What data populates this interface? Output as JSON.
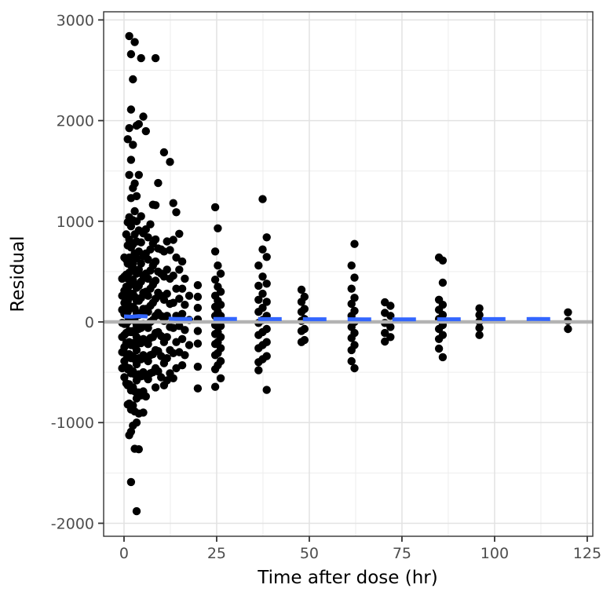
{
  "figure": {
    "background": "#FFFFFF",
    "panel_background": "#FFFFFF"
  },
  "chart_data": {
    "type": "scatter",
    "title": "",
    "xlabel": "Time after dose (hr)",
    "ylabel": "Residual",
    "xlim": [
      -5.5,
      126.5
    ],
    "ylim": [
      -2129,
      3081
    ],
    "x_major_ticks": [
      0,
      25,
      50,
      75,
      100,
      125
    ],
    "x_minor_ticks": [
      12.5,
      37.5,
      62.5,
      87.5,
      112.5
    ],
    "y_major_ticks": [
      -2000,
      -1000,
      0,
      1000,
      2000,
      3000
    ],
    "y_minor_ticks": [
      -1500,
      -500,
      500,
      1500,
      2500
    ],
    "x_tick_labels": [
      "0",
      "25",
      "50",
      "75",
      "100",
      "125"
    ],
    "y_tick_labels": [
      "-2000",
      "-1000",
      "0",
      "1000",
      "2000",
      "3000"
    ],
    "grid": true,
    "legend": "none",
    "point_color": "#000000",
    "point_size": 5.2,
    "zero_line": {
      "y": 0,
      "color": "#B3B3B3",
      "width": 4.5
    },
    "smooth_line": {
      "color": "#3366FF",
      "width": 5,
      "dash": [
        30,
        27
      ],
      "points": [
        [
          0,
          55
        ],
        [
          2,
          52
        ],
        [
          4,
          58
        ],
        [
          6,
          55
        ],
        [
          8,
          45
        ],
        [
          10,
          35
        ],
        [
          14,
          30
        ],
        [
          20,
          30
        ],
        [
          25,
          30
        ],
        [
          30,
          30
        ],
        [
          35,
          29
        ],
        [
          40,
          28
        ],
        [
          45,
          28
        ],
        [
          50,
          27
        ],
        [
          55,
          27
        ],
        [
          60,
          27
        ],
        [
          65,
          26
        ],
        [
          70,
          26
        ],
        [
          75,
          26
        ],
        [
          80,
          26
        ],
        [
          85,
          27
        ],
        [
          90,
          27
        ],
        [
          95,
          28
        ],
        [
          100,
          28
        ],
        [
          105,
          28
        ],
        [
          110,
          29
        ],
        [
          115,
          28
        ],
        [
          120,
          28
        ]
      ]
    },
    "residual_columns": [
      {
        "t": -0.5,
        "r": [
          430,
          260,
          120,
          -10,
          -150,
          -300,
          -460
        ]
      },
      {
        "t": 0.1,
        "r": [
          640,
          450,
          310,
          190,
          80,
          -20,
          -130,
          -250,
          -390,
          -550
        ]
      },
      {
        "t": 0.6,
        "r": [
          870,
          620,
          470,
          350,
          250,
          160,
          70,
          -20,
          -110,
          -210,
          -320,
          -450,
          -610
        ]
      },
      {
        "t": 1.0,
        "r": [
          1815,
          990,
          760,
          580,
          430,
          310,
          200,
          100,
          0,
          -100,
          -210,
          -330,
          -470,
          -630,
          -820
        ]
      },
      {
        "t": 1.4,
        "r": [
          2840,
          1925,
          1460,
          1040,
          820,
          640,
          490,
          360,
          240,
          130,
          20,
          -90,
          -200,
          -320,
          -460,
          -620,
          -810,
          -1125
        ]
      },
      {
        "t": 1.9,
        "r": [
          2660,
          2110,
          1610,
          1230,
          950,
          740,
          560,
          410,
          270,
          140,
          20,
          -100,
          -230,
          -360,
          -510,
          -680,
          -870,
          -1090,
          -1590
        ]
      },
      {
        "t": 2.4,
        "r": [
          2410,
          1760,
          1330,
          1010,
          770,
          580,
          420,
          280,
          150,
          30,
          -90,
          -210,
          -340,
          -490,
          -650,
          -830,
          -1030
        ]
      },
      {
        "t": 2.9,
        "r": [
          2780,
          1375,
          1100,
          870,
          680,
          520,
          380,
          250,
          130,
          10,
          -110,
          -240,
          -370,
          -520,
          -690,
          -890,
          -1260
        ]
      },
      {
        "t": 3.4,
        "r": [
          1950,
          1250,
          1000,
          800,
          630,
          480,
          340,
          210,
          90,
          -30,
          -150,
          -280,
          -420,
          -580,
          -760,
          -1000,
          -1880
        ]
      },
      {
        "t": 4.0,
        "r": [
          1965,
          1460,
          910,
          700,
          520,
          360,
          210,
          70,
          -70,
          -210,
          -360,
          -520,
          -700,
          -910,
          -1265
        ]
      },
      {
        "t": 4.6,
        "r": [
          2620,
          1050,
          790,
          580,
          400,
          240,
          90,
          -60,
          -210,
          -370,
          -540,
          -730
        ]
      },
      {
        "t": 5.2,
        "r": [
          2040,
          880,
          650,
          460,
          290,
          130,
          -20,
          -170,
          -330,
          -500,
          -690,
          -900
        ]
      },
      {
        "t": 5.9,
        "r": [
          1895,
          920,
          680,
          480,
          300,
          130,
          -30,
          -190,
          -360,
          -540,
          -740
        ]
      },
      {
        "t": 6.5,
        "r": [
          840,
          620,
          430,
          260,
          100,
          -60,
          -220,
          -390,
          -570
        ]
      },
      {
        "t": 7.1,
        "r": [
          970,
          720,
          510,
          330,
          160,
          0,
          -160,
          -330,
          -510
        ]
      },
      {
        "t": 7.8,
        "r": [
          1165,
          780,
          560,
          370,
          190,
          20,
          -150,
          -320,
          -500
        ]
      },
      {
        "t": 8.5,
        "r": [
          2620,
          1160,
          820,
          600,
          410,
          230,
          60,
          -110,
          -280,
          -460,
          -650
        ]
      },
      {
        "t": 9.2,
        "r": [
          1380,
          730,
          500,
          290,
          90,
          -100,
          -290,
          -490
        ]
      },
      {
        "t": 10.0,
        "r": [
          720,
          480,
          260,
          60,
          -140,
          -340,
          -550
        ]
      },
      {
        "t": 10.8,
        "r": [
          1685,
          700,
          450,
          220,
          10,
          -200,
          -410,
          -630
        ]
      },
      {
        "t": 11.6,
        "r": [
          800,
          520,
          280,
          60,
          -150,
          -360,
          -580
        ]
      },
      {
        "t": 12.4,
        "r": [
          1590,
          715,
          430,
          180,
          -50,
          -280,
          -510
        ]
      },
      {
        "t": 13.3,
        "r": [
          1180,
          815,
          460,
          190,
          -60,
          -310,
          -560
        ]
      },
      {
        "t": 14.1,
        "r": [
          1090,
          640,
          330,
          60,
          -200,
          -460
        ]
      },
      {
        "t": 14.9,
        "r": [
          875,
          520,
          230,
          -40,
          -300
        ]
      },
      {
        "t": 15.7,
        "r": [
          600,
          330,
          80,
          -170,
          -430
        ]
      },
      {
        "t": 16.4,
        "r": [
          430,
          170,
          -80,
          -330
        ]
      },
      {
        "t": 17.6,
        "r": [
          260,
          20,
          -230
        ]
      },
      {
        "t": 19.9,
        "r": [
          365,
          250,
          140,
          25,
          -90,
          -215,
          -445,
          -660
        ]
      },
      {
        "t": 24.6,
        "r": [
          1140,
          700,
          420,
          260,
          150,
          60,
          -30,
          -120,
          -220,
          -330,
          -470,
          -645
        ]
      },
      {
        "t": 25.3,
        "r": [
          930,
          560,
          350,
          210,
          100,
          0,
          -100,
          -200,
          -310,
          -430
        ]
      },
      {
        "t": 26.1,
        "r": [
          480,
          300,
          170,
          60,
          -40,
          -150,
          -260,
          -390,
          -560
        ]
      },
      {
        "t": 36.3,
        "r": [
          560,
          360,
          220,
          100,
          -10,
          -130,
          -260,
          -400,
          -480
        ]
      },
      {
        "t": 37.4,
        "r": [
          1220,
          720,
          450,
          280,
          140,
          20,
          -100,
          -230,
          -370
        ]
      },
      {
        "t": 38.5,
        "r": [
          840,
          645,
          380,
          200,
          60,
          -70,
          -200,
          -340,
          -675
        ]
      },
      {
        "t": 47.9,
        "r": [
          320,
          200,
          100,
          10,
          -90,
          -200
        ]
      },
      {
        "t": 48.7,
        "r": [
          250,
          130,
          30,
          -70,
          -180
        ]
      },
      {
        "t": 61.4,
        "r": [
          560,
          330,
          180,
          60,
          -50,
          -160,
          -280,
          -390
        ]
      },
      {
        "t": 62.2,
        "r": [
          775,
          440,
          240,
          110,
          0,
          -110,
          -230,
          -460
        ]
      },
      {
        "t": 70.4,
        "r": [
          195,
          90,
          -10,
          -110,
          -195
        ]
      },
      {
        "t": 71.9,
        "r": [
          160,
          60,
          -50,
          -150
        ]
      },
      {
        "t": 85.0,
        "r": [
          640,
          220,
          120,
          30,
          -70,
          -170,
          -265
        ]
      },
      {
        "t": 86.0,
        "r": [
          610,
          390,
          170,
          70,
          -30,
          -130,
          -350
        ]
      },
      {
        "t": 95.9,
        "r": [
          135,
          70,
          5,
          -60,
          -130
        ]
      },
      {
        "t": 119.8,
        "r": [
          95,
          10,
          -70
        ]
      }
    ]
  },
  "style": {
    "grid_major_color": "#E2E2E2",
    "grid_minor_color": "#EDEDED",
    "panel_border_color": "#333333",
    "tick_color": "#333333",
    "tick_label_color": "#4D4D4D",
    "axis_title_color": "#000000"
  }
}
